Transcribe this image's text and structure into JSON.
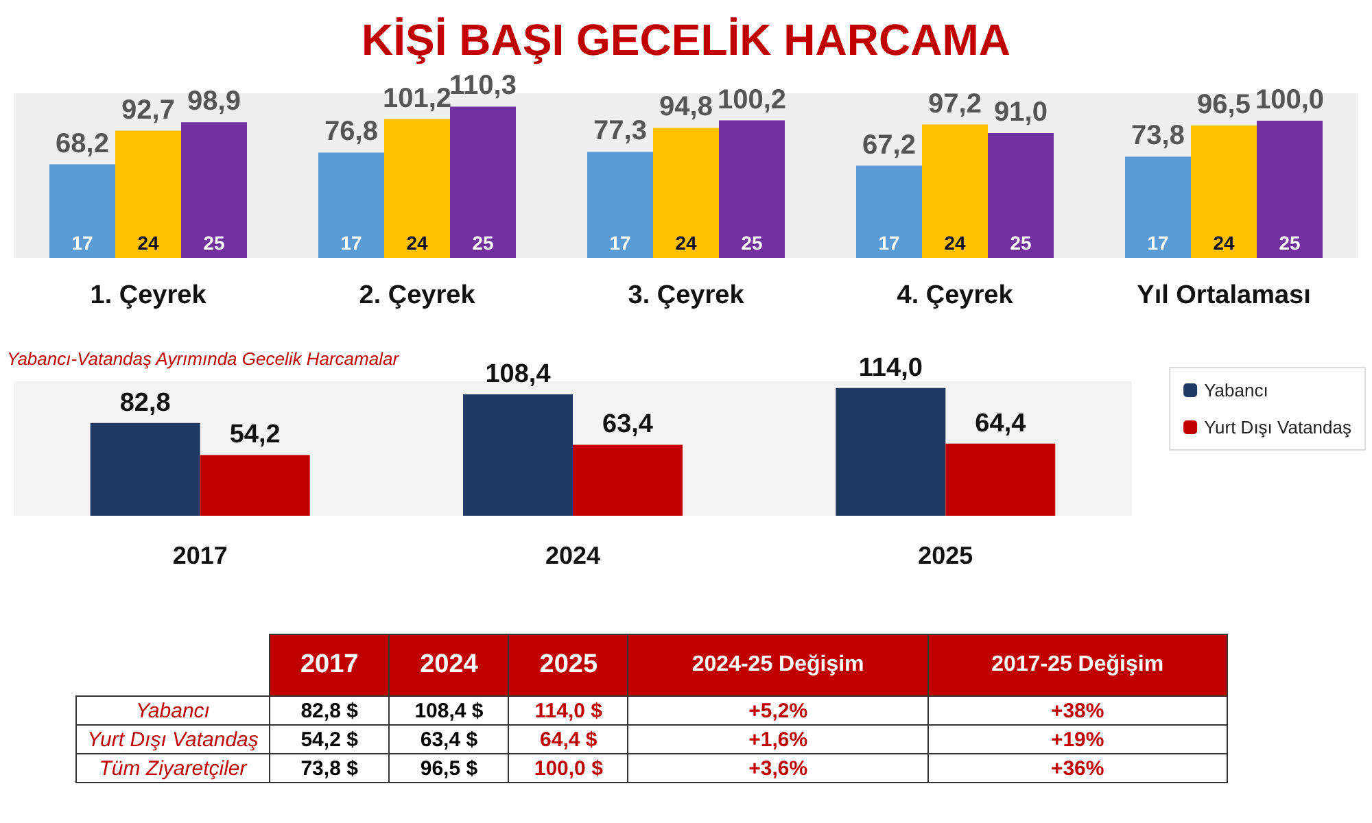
{
  "chart_data": [
    {
      "type": "bar",
      "title": "KİŞİ BAŞI GECELİK HARCAMA",
      "categories": [
        "1. Çeyrek",
        "2. Çeyrek",
        "3. Çeyrek",
        "4. Çeyrek",
        "Yıl Ortalaması"
      ],
      "series": [
        {
          "name": "17",
          "color": "#5b9bd5",
          "values": [
            68.2,
            76.8,
            77.3,
            67.2,
            73.8
          ],
          "value_labels": [
            "68,2",
            "76,8",
            "77,3",
            "67,2",
            "73,8"
          ]
        },
        {
          "name": "24",
          "color": "#ffc000",
          "values": [
            92.7,
            101.2,
            94.8,
            97.2,
            96.5
          ],
          "value_labels": [
            "92,7",
            "101,2",
            "94,8",
            "97,2",
            "96,5"
          ]
        },
        {
          "name": "25",
          "color": "#7030a0",
          "values": [
            98.9,
            110.3,
            100.2,
            91.0,
            100.0
          ],
          "value_labels": [
            "98,9",
            "110,3",
            "100,2",
            "91,0",
            "100,0"
          ]
        }
      ],
      "legend": false,
      "grid": false
    },
    {
      "type": "bar",
      "title": "Yabancı-Vatandaş Ayrımında Gecelik Harcamalar",
      "categories": [
        "2017",
        "2024",
        "2025"
      ],
      "series": [
        {
          "name": "Yabancı",
          "color": "#1f3864",
          "values": [
            82.8,
            108.4,
            114.0
          ],
          "value_labels": [
            "82,8",
            "108,4",
            "114,0"
          ]
        },
        {
          "name": "Yurt Dışı Vatandaş",
          "color": "#c00000",
          "values": [
            54.2,
            63.4,
            64.4
          ],
          "value_labels": [
            "54,2",
            "63,4",
            "64,4"
          ]
        }
      ],
      "legend": "right",
      "grid": false
    },
    {
      "type": "other",
      "categories": [
        "2017",
        "2024",
        "2025",
        "2024-25 Değişim",
        "2017-25 Değişim"
      ],
      "y_categories": [
        "Yabancı",
        "Yurt Dışı Vatandaş",
        "Tüm Ziyaretçiler"
      ],
      "cell_labels": [
        [
          "82,8 $",
          "108,4 $",
          "114,0 $",
          "+5,2%",
          "+38%"
        ],
        [
          "54,2 $",
          "63,4 $",
          "64,4 $",
          "+1,6%",
          "+19%"
        ],
        [
          "73,8 $",
          "96,5 $",
          "100,0 $",
          "+3,6%",
          "+36%"
        ]
      ]
    }
  ]
}
